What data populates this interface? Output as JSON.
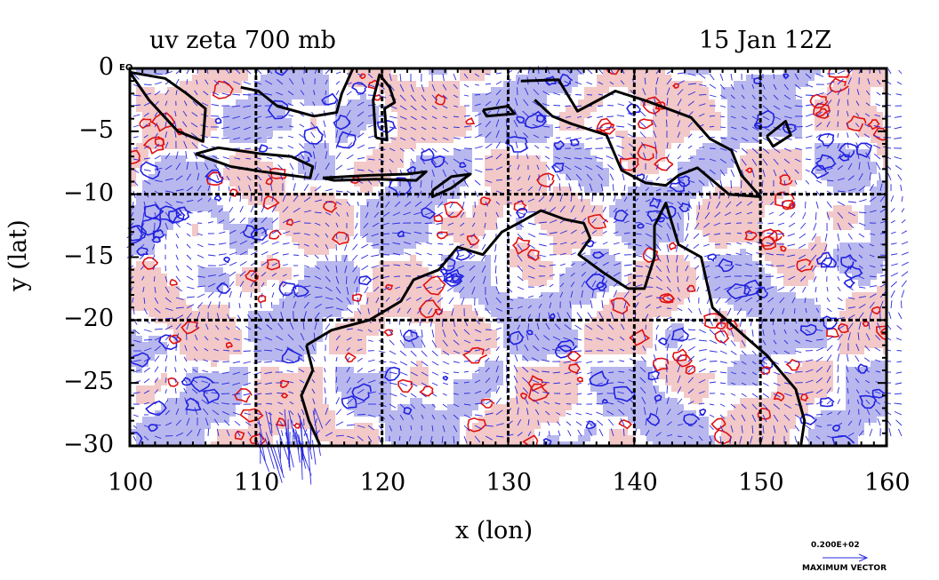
{
  "title_left": "uv zeta 700 mb",
  "title_right": "15 Jan 12Z",
  "corner_label": "EQ",
  "vector_key": {
    "value_label": "0.200E+02",
    "caption": "MAXIMUM VECTOR"
  },
  "colors": {
    "positive_fill": "#f2c8c8",
    "negative_fill": "#b8b8ee",
    "positive_contour": "#e01010",
    "negative_contour": "#2020e0",
    "vector": "#2a2ae0",
    "coast": "#000000"
  },
  "chart_data": {
    "type": "heatmap",
    "title": "uv zeta 700 mb",
    "subtitle": "15 Jan 12Z",
    "xlabel": "x (lon)",
    "ylabel": "y (lat)",
    "xlim": [
      100,
      160
    ],
    "ylim": [
      -30,
      0
    ],
    "xticks": [
      100,
      110,
      120,
      130,
      140,
      150,
      160
    ],
    "yticks": [
      0,
      -5,
      -10,
      -15,
      -20,
      -25,
      -30
    ],
    "ytick_labels": [
      "0",
      "−5",
      "−10",
      "−15",
      "−20",
      "−25",
      "−30"
    ],
    "grid_lon": [
      110,
      120,
      130,
      140,
      150
    ],
    "grid_lat": [
      -10,
      -20
    ]
  }
}
